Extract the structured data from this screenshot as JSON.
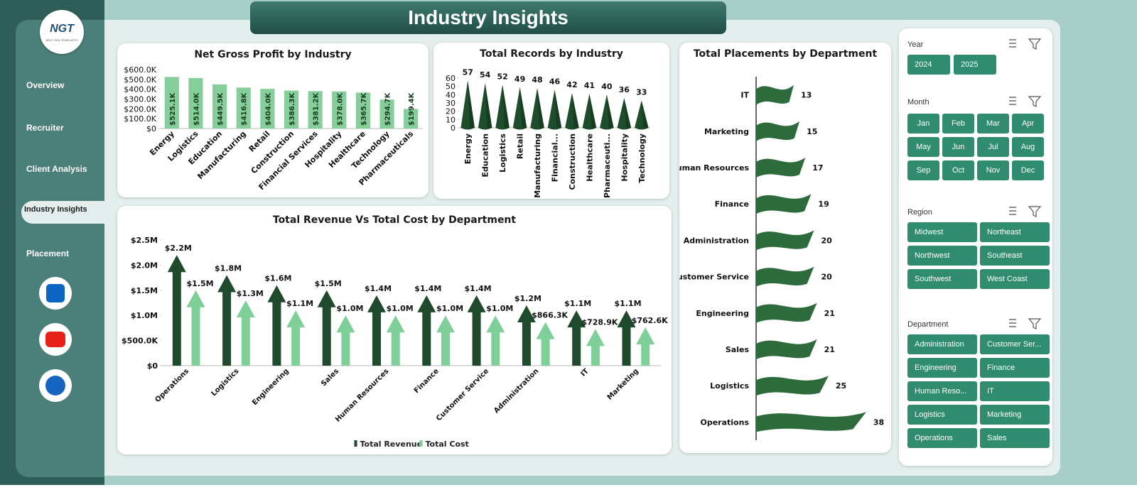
{
  "header": {
    "title": "Industry Insights"
  },
  "sidebar": {
    "logo": "NGT",
    "logo_tagline": "NEXT GEN TEMPLATES",
    "items": [
      "Overview",
      "Recruiter",
      "Client Analysis",
      "Industry Insights",
      "Placement"
    ],
    "active": 3
  },
  "chart_data": [
    {
      "type": "bar",
      "title": "Net Gross Profit by Industry",
      "bar_shape": "column",
      "color": "#86cf9a",
      "categories": [
        "Energy",
        "Logistics",
        "Education",
        "Manufacturing",
        "Retail",
        "Construction",
        "Financial Services",
        "Hospitality",
        "Healthcare",
        "Technology",
        "Pharmaceuticals"
      ],
      "values": [
        525100,
        514000,
        449500,
        416800,
        404000,
        386300,
        381200,
        378000,
        365700,
        294700,
        199400
      ],
      "value_labels": [
        "$525.1K",
        "$514.0K",
        "$449.5K",
        "$416.8K",
        "$404.0K",
        "$386.3K",
        "$381.2K",
        "$378.0K",
        "$365.7K",
        "$294.7K",
        "$199.4K"
      ],
      "ylim": [
        0,
        600000
      ],
      "yticks": [
        {
          "value": 0,
          "label": "$0"
        },
        {
          "value": 100000,
          "label": "$100.0K"
        },
        {
          "value": 200000,
          "label": "$200.0K"
        },
        {
          "value": 300000,
          "label": "$300.0K"
        },
        {
          "value": 400000,
          "label": "$400.0K"
        },
        {
          "value": 500000,
          "label": "$500.0K"
        },
        {
          "value": 600000,
          "label": "$600.0K"
        }
      ]
    },
    {
      "type": "bar",
      "title": "Total Records by Industry",
      "bar_shape": "cone",
      "color": "#1e4d2b",
      "categories": [
        "Energy",
        "Education",
        "Logistics",
        "Retail",
        "Manufacturing",
        "Financial...",
        "Construction",
        "Healthcare",
        "Pharmaceuti...",
        "Hospitality",
        "Technology"
      ],
      "values": [
        57,
        54,
        52,
        49,
        48,
        46,
        42,
        41,
        40,
        36,
        33
      ],
      "ylim": [
        0,
        60
      ],
      "yticks": [
        0,
        10,
        20,
        30,
        40,
        50,
        60
      ]
    },
    {
      "type": "bar",
      "title": "Total Revenue Vs Total Cost by Department",
      "bar_shape": "arrow",
      "legend": "bottom",
      "categories": [
        "Operations",
        "Logistics",
        "Engineering",
        "Sales",
        "Human Resources",
        "Finance",
        "Customer Service",
        "Administration",
        "IT",
        "Marketing"
      ],
      "series": [
        {
          "name": "Total Revenue",
          "color": "#1f4a2c",
          "values": [
            2200000,
            1800000,
            1600000,
            1500000,
            1400000,
            1400000,
            1400000,
            1200000,
            1100000,
            1100000
          ],
          "value_labels": [
            "$2.2M",
            "$1.8M",
            "$1.6M",
            "$1.5M",
            "$1.4M",
            "$1.4M",
            "$1.4M",
            "$1.2M",
            "$1.1M",
            "$1.1M"
          ]
        },
        {
          "name": "Total Cost",
          "color": "#7fcf98",
          "values": [
            1500000,
            1300000,
            1100000,
            1000000,
            1000000,
            1000000,
            1000000,
            866300,
            728900,
            762600
          ],
          "value_labels": [
            "$1.5M",
            "$1.3M",
            "$1.1M",
            "$1.0M",
            "$1.0M",
            "$1.0M",
            "$1.0M",
            "$866.3K",
            "$728.9K",
            "$762.6K"
          ]
        }
      ],
      "ylim": [
        0,
        2500000
      ],
      "yticks": [
        {
          "value": 0,
          "label": "$0"
        },
        {
          "value": 500000,
          "label": "$500.0K"
        },
        {
          "value": 1000000,
          "label": "$1.0M"
        },
        {
          "value": 1500000,
          "label": "$1.5M"
        },
        {
          "value": 2000000,
          "label": "$2.0M"
        },
        {
          "value": 2500000,
          "label": "$2.5M"
        }
      ]
    },
    {
      "type": "barh",
      "title": "Total Placements by Department",
      "bar_shape": "flag",
      "color": "#2e6b3c",
      "categories": [
        "IT",
        "Marketing",
        "Human Resources",
        "Finance",
        "Administration",
        "Customer Service",
        "Engineering",
        "Sales",
        "Logistics",
        "Operations"
      ],
      "values": [
        13,
        15,
        17,
        19,
        20,
        20,
        21,
        21,
        25,
        38
      ],
      "xlim": [
        0,
        40
      ]
    }
  ],
  "slicers": [
    {
      "title": "Year",
      "items": [
        "2024",
        "2025"
      ]
    },
    {
      "title": "Month",
      "items": [
        "Jan",
        "Feb",
        "Mar",
        "Apr",
        "May",
        "Jun",
        "Jul",
        "Aug",
        "Sep",
        "Oct",
        "Nov",
        "Dec"
      ]
    },
    {
      "title": "Region",
      "items": [
        "Midwest",
        "Northeast",
        "Northwest",
        "Southeast",
        "Southwest",
        "West Coast"
      ]
    },
    {
      "title": "Department",
      "items": [
        "Administration",
        "Customer Ser...",
        "Engineering",
        "Finance",
        "Human Reso...",
        "IT",
        "Logistics",
        "Marketing",
        "Operations",
        "Sales"
      ]
    }
  ]
}
